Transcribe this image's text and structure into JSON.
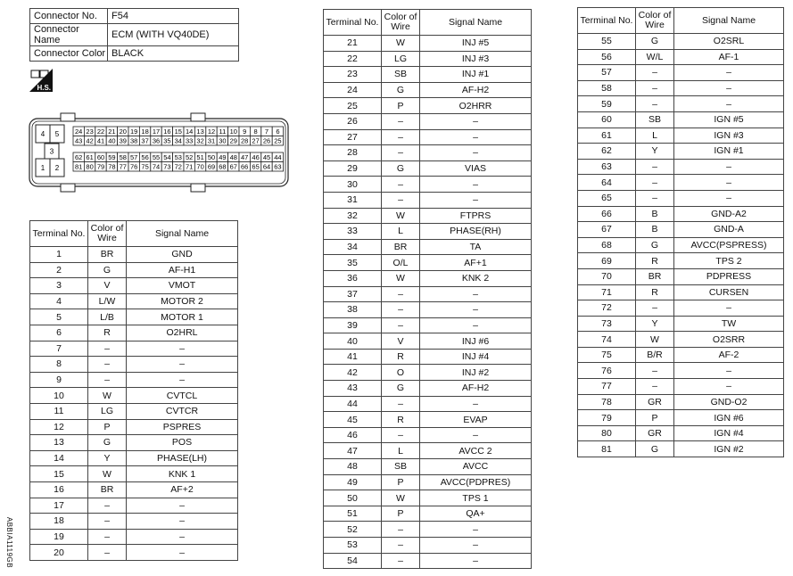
{
  "connector_info": [
    {
      "label": "Connector No.",
      "value": "F54"
    },
    {
      "label": "Connector Name",
      "value": "ECM (WITH VQ40DE)"
    },
    {
      "label": "Connector Color",
      "value": "BLACK"
    }
  ],
  "hs_icon": {
    "name": "harness-side-icon",
    "text": "H.S."
  },
  "connector_diagram": {
    "left_block": [
      "4",
      "5",
      "3",
      "1",
      "2"
    ],
    "grid_rows": [
      [
        "24",
        "23",
        "22",
        "21",
        "20",
        "19",
        "18",
        "17",
        "16",
        "15",
        "14",
        "13",
        "12",
        "11",
        "10",
        "9",
        "8",
        "7",
        "6"
      ],
      [
        "43",
        "42",
        "41",
        "40",
        "39",
        "38",
        "37",
        "36",
        "35",
        "34",
        "33",
        "32",
        "31",
        "30",
        "29",
        "28",
        "27",
        "26",
        "25"
      ],
      [
        "62",
        "61",
        "60",
        "59",
        "58",
        "57",
        "56",
        "55",
        "54",
        "53",
        "52",
        "51",
        "50",
        "49",
        "48",
        "47",
        "46",
        "45",
        "44"
      ],
      [
        "81",
        "80",
        "79",
        "78",
        "77",
        "76",
        "75",
        "74",
        "73",
        "72",
        "71",
        "70",
        "69",
        "68",
        "67",
        "66",
        "65",
        "64",
        "63"
      ]
    ]
  },
  "table_headers": {
    "terminal": "Terminal No.",
    "color_line1": "Color of",
    "color_line2": "Wire",
    "signal": "Signal Name"
  },
  "tables": [
    [
      [
        "1",
        "BR",
        "GND"
      ],
      [
        "2",
        "G",
        "AF-H1"
      ],
      [
        "3",
        "V",
        "VMOT"
      ],
      [
        "4",
        "L/W",
        "MOTOR 2"
      ],
      [
        "5",
        "L/B",
        "MOTOR 1"
      ],
      [
        "6",
        "R",
        "O2HRL"
      ],
      [
        "7",
        "–",
        "–"
      ],
      [
        "8",
        "–",
        "–"
      ],
      [
        "9",
        "–",
        "–"
      ],
      [
        "10",
        "W",
        "CVTCL"
      ],
      [
        "11",
        "LG",
        "CVTCR"
      ],
      [
        "12",
        "P",
        "PSPRES"
      ],
      [
        "13",
        "G",
        "POS"
      ],
      [
        "14",
        "Y",
        "PHASE(LH)"
      ],
      [
        "15",
        "W",
        "KNK 1"
      ],
      [
        "16",
        "BR",
        "AF+2"
      ],
      [
        "17",
        "–",
        "–"
      ],
      [
        "18",
        "–",
        "–"
      ],
      [
        "19",
        "–",
        "–"
      ],
      [
        "20",
        "–",
        "–"
      ]
    ],
    [
      [
        "21",
        "W",
        "INJ #5"
      ],
      [
        "22",
        "LG",
        "INJ #3"
      ],
      [
        "23",
        "SB",
        "INJ #1"
      ],
      [
        "24",
        "G",
        "AF-H2"
      ],
      [
        "25",
        "P",
        "O2HRR"
      ],
      [
        "26",
        "–",
        "–"
      ],
      [
        "27",
        "–",
        "–"
      ],
      [
        "28",
        "–",
        "–"
      ],
      [
        "29",
        "G",
        "VIAS"
      ],
      [
        "30",
        "–",
        "–"
      ],
      [
        "31",
        "–",
        "–"
      ],
      [
        "32",
        "W",
        "FTPRS"
      ],
      [
        "33",
        "L",
        "PHASE(RH)"
      ],
      [
        "34",
        "BR",
        "TA"
      ],
      [
        "35",
        "O/L",
        "AF+1"
      ],
      [
        "36",
        "W",
        "KNK 2"
      ],
      [
        "37",
        "–",
        "–"
      ],
      [
        "38",
        "–",
        "–"
      ],
      [
        "39",
        "–",
        "–"
      ],
      [
        "40",
        "V",
        "INJ #6"
      ],
      [
        "41",
        "R",
        "INJ #4"
      ],
      [
        "42",
        "O",
        "INJ #2"
      ],
      [
        "43",
        "G",
        "AF-H2"
      ],
      [
        "44",
        "–",
        "–"
      ],
      [
        "45",
        "R",
        "EVAP"
      ],
      [
        "46",
        "–",
        "–"
      ],
      [
        "47",
        "L",
        "AVCC 2"
      ],
      [
        "48",
        "SB",
        "AVCC"
      ],
      [
        "49",
        "P",
        "AVCC(PDPRES)"
      ],
      [
        "50",
        "W",
        "TPS 1"
      ],
      [
        "51",
        "P",
        "QA+"
      ],
      [
        "52",
        "–",
        "–"
      ],
      [
        "53",
        "–",
        "–"
      ],
      [
        "54",
        "–",
        "–"
      ]
    ],
    [
      [
        "55",
        "G",
        "O2SRL"
      ],
      [
        "56",
        "W/L",
        "AF-1"
      ],
      [
        "57",
        "–",
        "–"
      ],
      [
        "58",
        "–",
        "–"
      ],
      [
        "59",
        "–",
        "–"
      ],
      [
        "60",
        "SB",
        "IGN #5"
      ],
      [
        "61",
        "L",
        "IGN #3"
      ],
      [
        "62",
        "Y",
        "IGN #1"
      ],
      [
        "63",
        "–",
        "–"
      ],
      [
        "64",
        "–",
        "–"
      ],
      [
        "65",
        "–",
        "–"
      ],
      [
        "66",
        "B",
        "GND-A2"
      ],
      [
        "67",
        "B",
        "GND-A"
      ],
      [
        "68",
        "G",
        "AVCC(PSPRESS)"
      ],
      [
        "69",
        "R",
        "TPS 2"
      ],
      [
        "70",
        "BR",
        "PDPRESS"
      ],
      [
        "71",
        "R",
        "CURSEN"
      ],
      [
        "72",
        "–",
        "–"
      ],
      [
        "73",
        "Y",
        "TW"
      ],
      [
        "74",
        "W",
        "O2SRR"
      ],
      [
        "75",
        "B/R",
        "AF-2"
      ],
      [
        "76",
        "–",
        "–"
      ],
      [
        "77",
        "–",
        "–"
      ],
      [
        "78",
        "GR",
        "GND-O2"
      ],
      [
        "79",
        "P",
        "IGN #6"
      ],
      [
        "80",
        "GR",
        "IGN #4"
      ],
      [
        "81",
        "G",
        "IGN #2"
      ]
    ]
  ],
  "figure_code": "ABBIA1119GB"
}
